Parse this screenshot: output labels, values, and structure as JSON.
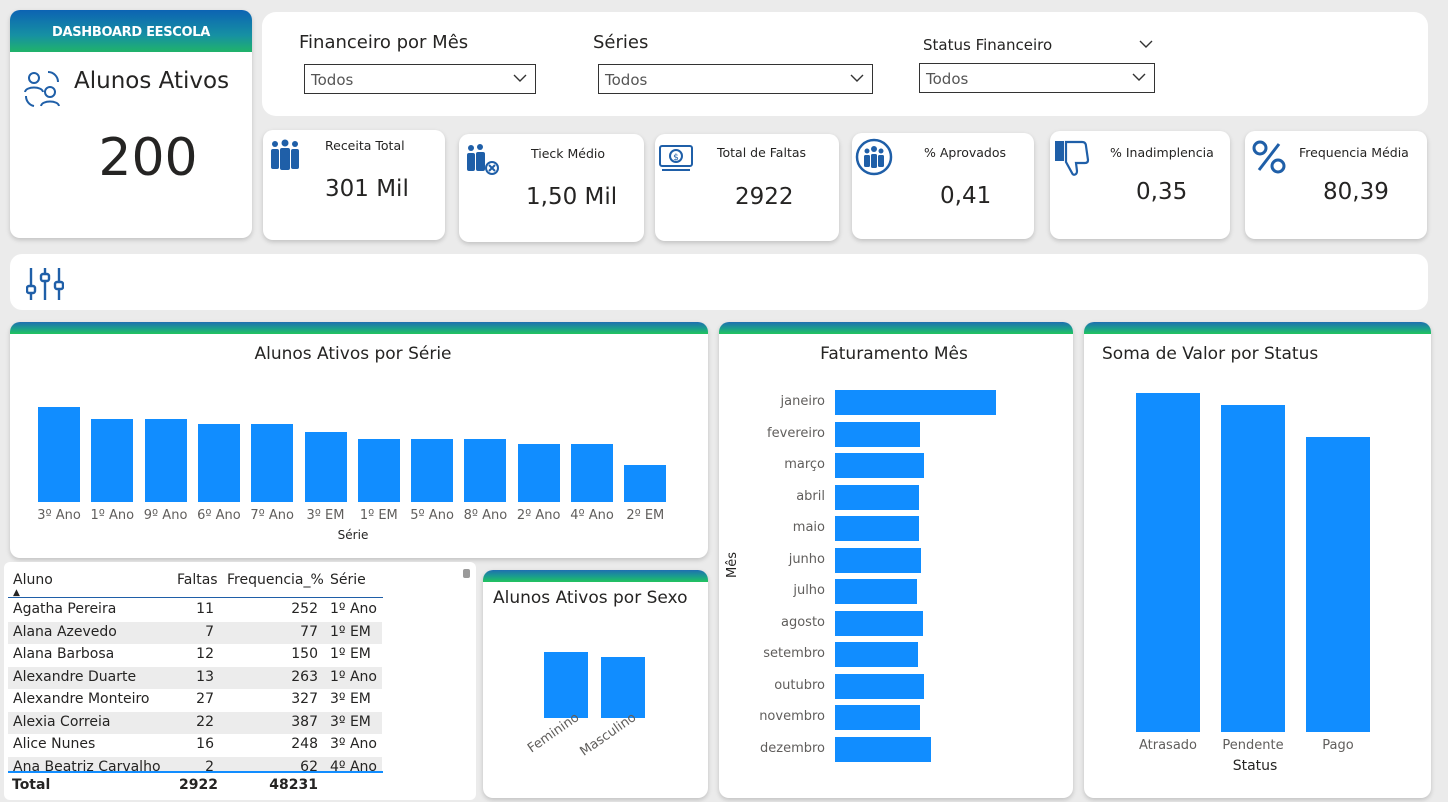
{
  "header": {
    "banner": "DASHBOARD EESCOLA",
    "title": "Alunos Ativos",
    "value": "200"
  },
  "slicers": [
    {
      "label": "Financeiro por Mês",
      "value": "Todos"
    },
    {
      "label": "Séries",
      "value": "Todos"
    },
    {
      "label": "Status Financeiro",
      "value": "Todos"
    }
  ],
  "kpis": [
    {
      "label": "Receita Total",
      "value": "301 Mil",
      "icon": "people-group-icon"
    },
    {
      "label": "Tieck Médio",
      "value": "1,50 Mil",
      "icon": "people-cancel-icon"
    },
    {
      "label": "Total de Faltas",
      "value": "2922",
      "icon": "money-bill-icon"
    },
    {
      "label": "% Aprovados",
      "value": "0,41",
      "icon": "people-circle-icon"
    },
    {
      "label": "% Inadimplencia",
      "value": "0,35",
      "icon": "thumbs-down-icon"
    },
    {
      "label": "Frequencia Média",
      "value": "80,39",
      "icon": "percent-icon"
    }
  ],
  "colors": {
    "bar": "#118dff",
    "accent": "#0c63b3",
    "accent2": "#20b36a"
  },
  "charts": {
    "serie_title": "Alunos Ativos por Série",
    "serie_xlabel": "Série",
    "mes_title": "Faturamento Mês",
    "mes_ylabel": "Mês",
    "status_title": "Soma de Valor por Status",
    "status_xlabel": "Status",
    "sexo_title": "Alunos Ativos por Sexo"
  },
  "chart_data": [
    {
      "type": "bar",
      "title": "Alunos Ativos por Série",
      "xlabel": "Série",
      "categories": [
        "3º Ano",
        "1º Ano",
        "9º Ano",
        "6º Ano",
        "7º Ano",
        "3º EM",
        "1º EM",
        "5º Ano",
        "8º Ano",
        "2º Ano",
        "4º Ano",
        "2º EM"
      ],
      "values": [
        20,
        17.5,
        17.5,
        16.5,
        16.5,
        14.8,
        13.2,
        13.2,
        13.2,
        12.3,
        12.3,
        7.8
      ],
      "ylim": [
        0,
        20
      ]
    },
    {
      "type": "bar",
      "orientation": "horizontal",
      "title": "Faturamento Mês",
      "ylabel": "Mês",
      "categories": [
        "janeiro",
        "fevereiro",
        "março",
        "abril",
        "maio",
        "junho",
        "julho",
        "agosto",
        "setembro",
        "outubro",
        "novembro",
        "dezembro"
      ],
      "values": [
        36,
        19,
        20,
        18.8,
        18.7,
        19.2,
        18.3,
        19.6,
        18.6,
        20,
        19,
        21.5
      ],
      "xlim": [
        0,
        36
      ]
    },
    {
      "type": "bar",
      "title": "Soma de Valor por Status",
      "xlabel": "Status",
      "categories": [
        "Atrasado",
        "Pendente",
        "Pago"
      ],
      "values": [
        100,
        96.5,
        87
      ],
      "ylim": [
        0,
        100
      ]
    },
    {
      "type": "bar",
      "title": "Alunos Ativos por Sexo",
      "categories": [
        "Feminino",
        "Masculino"
      ],
      "values": [
        100,
        92
      ],
      "ylim": [
        0,
        100
      ]
    }
  ],
  "table": {
    "columns": [
      "Aluno",
      "Faltas",
      "Frequencia_%",
      "Série"
    ],
    "rows": [
      [
        "Agatha Pereira",
        "11",
        "252",
        "1º Ano"
      ],
      [
        "Alana Azevedo",
        "7",
        "77",
        "1º EM"
      ],
      [
        "Alana Barbosa",
        "12",
        "150",
        "1º EM"
      ],
      [
        "Alexandre Duarte",
        "13",
        "263",
        "1º Ano"
      ],
      [
        "Alexandre Monteiro",
        "27",
        "327",
        "3º EM"
      ],
      [
        "Alexia Correia",
        "22",
        "387",
        "3º EM"
      ],
      [
        "Alice Nunes",
        "16",
        "248",
        "3º Ano"
      ],
      [
        "Ana Beatriz Carvalho",
        "2",
        "62",
        "4º Ano"
      ]
    ],
    "total_label": "Total",
    "total_faltas": "2922",
    "total_freq": "48231"
  }
}
